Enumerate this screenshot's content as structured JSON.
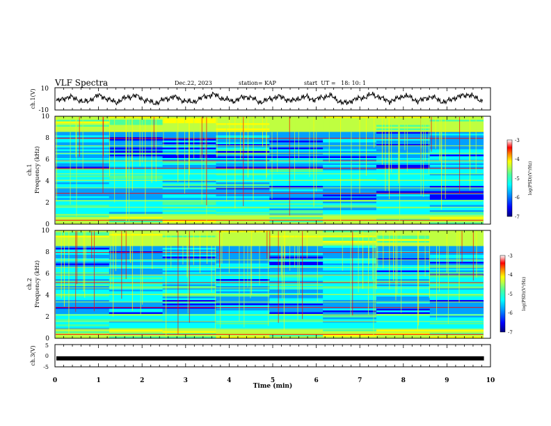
{
  "header": {
    "title": "VLF Spectra",
    "date": "Dec.22, 2023",
    "station": "station= KAP",
    "start": "start  UT =   18: 10: 1"
  },
  "chart_data": [
    {
      "type": "line",
      "panel": "ch1-waveform",
      "ylabel": "ch.1(V)",
      "ylim": [
        -10,
        10
      ],
      "yticks": [
        "10",
        "-10"
      ],
      "series": [
        {
          "values": [
            -2,
            -1,
            1,
            2,
            0,
            -1,
            -3,
            -2,
            1,
            3,
            2,
            0,
            -2,
            -3,
            -1,
            1,
            2,
            3,
            1,
            -1,
            -2,
            -4,
            -3,
            -1,
            0,
            2,
            1,
            -1,
            -2,
            -3,
            -2,
            0,
            2,
            3,
            4,
            2,
            0,
            -1,
            -2,
            -1,
            1,
            2,
            1,
            -1,
            -3,
            -2,
            0,
            1,
            2,
            1,
            -1,
            -2,
            0,
            1,
            2,
            0,
            -1,
            1,
            2,
            3,
            1,
            -2,
            -4,
            -3,
            -1,
            0,
            1,
            2,
            4,
            3,
            1,
            -1,
            -2,
            -1,
            1,
            3,
            2,
            0,
            -2,
            -1,
            1,
            2,
            0,
            -2,
            -3,
            -1,
            1,
            2,
            3,
            4,
            2,
            0,
            -2
          ]
        }
      ]
    },
    {
      "type": "heatmap",
      "panel": "ch1-spectrogram",
      "ylabel_top": "ch.1",
      "ylabel": "Frequency (kHz)",
      "ylim": [
        0,
        10
      ],
      "yticks": [
        "0",
        "2",
        "4",
        "6",
        "8",
        "10"
      ],
      "colorbar": {
        "label": "log(PSD)(V²/Hz)",
        "range": [
          -7,
          -3
        ],
        "ticks": [
          "-3",
          "-4",
          "-5",
          "-6",
          "-7"
        ]
      }
    },
    {
      "type": "heatmap",
      "panel": "ch2-spectrogram",
      "ylabel_top": "ch.2",
      "ylabel": "Frequency (kHz)",
      "ylim": [
        0,
        10
      ],
      "yticks": [
        "0",
        "2",
        "4",
        "6",
        "8",
        "10"
      ],
      "colorbar": {
        "label": "log(PSD)(V²/Hz)",
        "range": [
          -7,
          -3
        ],
        "ticks": [
          "-3",
          "-4",
          "-5",
          "-6",
          "-7"
        ]
      }
    },
    {
      "type": "line",
      "panel": "ch3-waveform",
      "ylabel": "ch.3(V)",
      "ylim": [
        -5,
        5
      ],
      "yticks": [
        "5",
        "0",
        "-5"
      ],
      "series": [
        {
          "values": [
            -1.2,
            -1.2
          ]
        }
      ]
    }
  ],
  "xaxis": {
    "label": "Time (min)",
    "xlim": [
      0,
      10
    ],
    "ticks": [
      "0",
      "1",
      "2",
      "3",
      "4",
      "5",
      "6",
      "7",
      "8",
      "9",
      "10"
    ],
    "data_end": 9.85
  },
  "colors": {
    "axis": "#000000",
    "scale": [
      "#00007f",
      "#0000ff",
      "#00a0ff",
      "#00ffff",
      "#4cff9c",
      "#bfff40",
      "#ffff00",
      "#ff8000",
      "#ff0000",
      "#ffffff"
    ]
  }
}
